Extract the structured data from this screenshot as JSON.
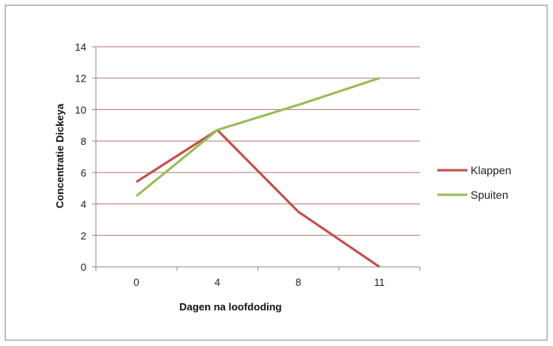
{
  "chart_data": {
    "type": "line",
    "categories": [
      "0",
      "4",
      "8",
      "11"
    ],
    "series": [
      {
        "name": "Klappen",
        "values": [
          5.4,
          8.7,
          3.5,
          0
        ],
        "color": "#c0504d"
      },
      {
        "name": "Spuiten",
        "values": [
          4.5,
          8.7,
          10.3,
          12.0
        ],
        "color": "#9bbb59"
      }
    ],
    "xlabel": "Dagen na loofdoding",
    "ylabel": "Concentratie Dickeya",
    "ylim": [
      0,
      14
    ],
    "yticks": [
      0,
      2,
      4,
      6,
      8,
      10,
      12,
      14
    ],
    "grid": true,
    "legend_position": "right",
    "gridline_color": "#b07a7a"
  }
}
